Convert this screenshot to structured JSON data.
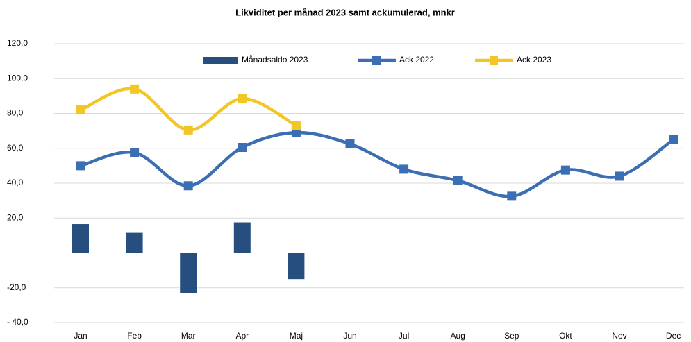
{
  "chart_data": {
    "type": "combo",
    "title": "Likviditet per månad 2023 samt ackumulerad, mnkr",
    "categories": [
      "Jan",
      "Feb",
      "Mar",
      "Apr",
      "Maj",
      "Jun",
      "Jul",
      "Aug",
      "Sep",
      "Okt",
      "Nov",
      "Dec"
    ],
    "series": [
      {
        "name": "Månadsaldo 2023",
        "type": "bar",
        "color": "#264f80",
        "values": [
          16.5,
          11.5,
          -23,
          17.5,
          -15,
          null,
          null,
          null,
          null,
          null,
          null,
          null
        ]
      },
      {
        "name": "Ack 2022",
        "type": "line",
        "color": "#3b6eb2",
        "values": [
          50,
          57.5,
          38.5,
          60.5,
          69,
          62.5,
          48,
          41.5,
          32.5,
          47.5,
          44,
          65
        ]
      },
      {
        "name": "Ack 2023",
        "type": "line",
        "color": "#f2c624",
        "values": [
          82,
          94,
          70.5,
          88.5,
          73,
          null,
          null,
          null,
          null,
          null,
          null,
          null
        ]
      }
    ],
    "ylim": [
      -40,
      120
    ],
    "yticks": [
      {
        "value": -40,
        "label": "- 40,0"
      },
      {
        "value": -20,
        "label": "-20,0"
      },
      {
        "value": 0,
        "label": "-"
      },
      {
        "value": 20,
        "label": "20,0"
      },
      {
        "value": 40,
        "label": "40,0"
      },
      {
        "value": 60,
        "label": "60,0"
      },
      {
        "value": 80,
        "label": "80,0"
      },
      {
        "value": 100,
        "label": "100,0"
      },
      {
        "value": 120,
        "label": "120,0"
      }
    ],
    "grid": true,
    "legend": "top"
  }
}
